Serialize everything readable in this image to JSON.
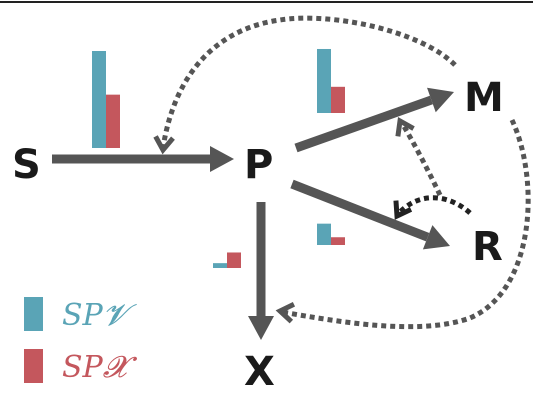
{
  "nodes": {
    "S": "S",
    "P": "P",
    "M": "M",
    "R": "R",
    "X": "X"
  },
  "legend": {
    "v": {
      "label": "SP𝓥",
      "color": "#5aa4b6"
    },
    "x": {
      "label": "SP𝓧",
      "color": "#c4575d"
    }
  },
  "colors": {
    "arrow": "#555555",
    "dotted": "#555555",
    "dotted_dark": "#222222",
    "bar_v": "#5aa4b6",
    "bar_x": "#c4575d"
  },
  "bars": {
    "S_to_P": {
      "v": 1.0,
      "x": 0.55
    },
    "P_to_M": {
      "v": 0.66,
      "x": 0.27
    },
    "P_to_R": {
      "v": 0.22,
      "x": 0.08
    },
    "P_to_X": {
      "v": 0.05,
      "x": 0.16
    }
  }
}
